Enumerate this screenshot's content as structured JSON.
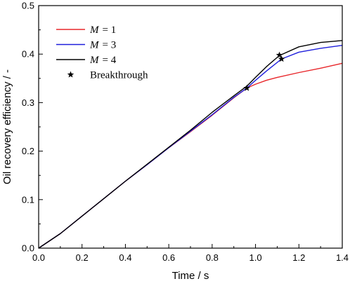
{
  "chart_data": {
    "type": "line",
    "title": "",
    "xlabel": "Time / s",
    "ylabel": "Oil recovery efficiency / -",
    "xlim": [
      0.0,
      1.4
    ],
    "ylim": [
      0.0,
      0.5
    ],
    "xticks": [
      "0.0",
      "0.2",
      "0.4",
      "0.6",
      "0.8",
      "1.0",
      "1.2",
      "1.4"
    ],
    "yticks": [
      "0.0",
      "0.1",
      "0.2",
      "0.3",
      "0.4",
      "0.5"
    ],
    "grid": false,
    "legend_position": "top-left",
    "series": [
      {
        "name": "M = 1",
        "label_var": "M",
        "label_rest": "= 1",
        "color": "#e8262a",
        "x": [
          0.0,
          0.1,
          0.2,
          0.3,
          0.4,
          0.5,
          0.6,
          0.7,
          0.8,
          0.9,
          0.96,
          1.0,
          1.05,
          1.1,
          1.2,
          1.3,
          1.4
        ],
        "y": [
          0.0,
          0.03,
          0.066,
          0.102,
          0.138,
          0.172,
          0.207,
          0.24,
          0.274,
          0.31,
          0.33,
          0.338,
          0.346,
          0.352,
          0.362,
          0.371,
          0.381
        ]
      },
      {
        "name": "M = 3",
        "label_var": "M",
        "label_rest": "= 3",
        "color": "#1f1fdc",
        "x": [
          0.0,
          0.1,
          0.2,
          0.3,
          0.4,
          0.5,
          0.6,
          0.7,
          0.8,
          0.9,
          0.96,
          1.0,
          1.05,
          1.12,
          1.2,
          1.3,
          1.4
        ],
        "y": [
          0.0,
          0.03,
          0.066,
          0.102,
          0.138,
          0.172,
          0.207,
          0.241,
          0.275,
          0.311,
          0.33,
          0.346,
          0.365,
          0.39,
          0.404,
          0.412,
          0.418
        ]
      },
      {
        "name": "M = 4",
        "label_var": "M",
        "label_rest": "= 4",
        "color": "#000000",
        "x": [
          0.0,
          0.1,
          0.2,
          0.3,
          0.4,
          0.5,
          0.6,
          0.7,
          0.8,
          0.9,
          0.96,
          1.0,
          1.05,
          1.11,
          1.2,
          1.3,
          1.4
        ],
        "y": [
          0.0,
          0.03,
          0.066,
          0.102,
          0.138,
          0.173,
          0.208,
          0.243,
          0.28,
          0.314,
          0.334,
          0.352,
          0.374,
          0.397,
          0.415,
          0.424,
          0.428
        ]
      }
    ],
    "breakthrough": {
      "name": "Breakthrough",
      "marker": "star",
      "points": [
        {
          "x": 0.96,
          "y": 0.33
        },
        {
          "x": 1.11,
          "y": 0.398
        },
        {
          "x": 1.12,
          "y": 0.39
        }
      ]
    }
  }
}
